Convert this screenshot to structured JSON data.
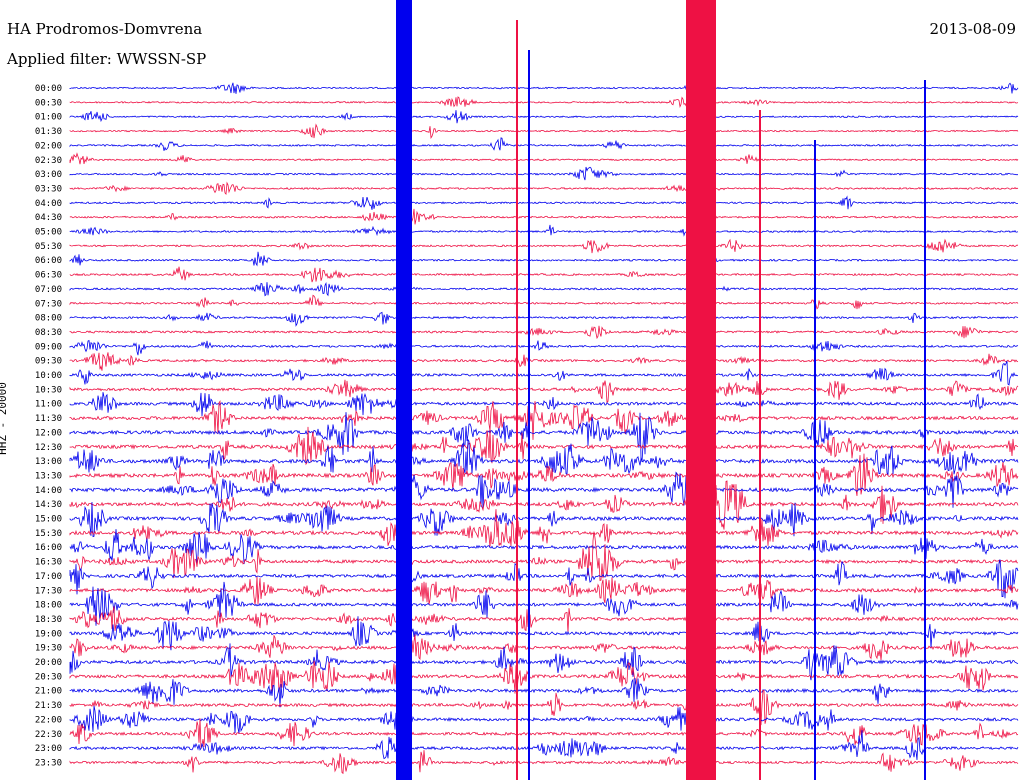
{
  "header": {
    "station": "HA Prodromos-Domvrena",
    "filter": "Applied filter: WWSSN-SP",
    "date": "2013-08-09"
  },
  "chart_data": {
    "type": "line",
    "title": "HA Prodromos-Domvrena",
    "subtitle": "Applied filter: WWSSN-SP",
    "ylabel": "HHZ - 20000",
    "xlabel": "",
    "grid": false,
    "legend": "none",
    "row_labels": [
      "00:00",
      "00:30",
      "01:00",
      "01:30",
      "02:00",
      "02:30",
      "03:00",
      "03:30",
      "04:00",
      "04:30",
      "05:00",
      "05:30",
      "06:00",
      "06:30",
      "07:00",
      "07:30",
      "08:00",
      "08:30",
      "09:00",
      "09:30",
      "10:00",
      "10:30",
      "11:00",
      "11:30",
      "12:00",
      "12:30",
      "13:00",
      "13:30",
      "14:00",
      "14:30",
      "15:00",
      "15:30",
      "16:00",
      "16:30",
      "17:00",
      "17:30",
      "18:00",
      "18:30",
      "19:00",
      "19:30",
      "20:00",
      "20:30",
      "21:00",
      "21:30",
      "22:00",
      "22:30",
      "23:00",
      "23:30"
    ],
    "series_colors": [
      "#0000ee",
      "#ee1144"
    ],
    "activity_level": [
      0.1,
      0.1,
      0.1,
      0.1,
      0.15,
      0.1,
      0.15,
      0.2,
      0.2,
      0.2,
      0.2,
      0.2,
      0.2,
      0.25,
      0.25,
      0.25,
      0.25,
      0.3,
      0.3,
      0.4,
      0.5,
      0.6,
      0.7,
      0.8,
      0.9,
      0.9,
      1.0,
      1.0,
      1.0,
      0.9,
      0.9,
      0.9,
      0.85,
      0.8,
      0.8,
      0.8,
      0.75,
      0.75,
      0.75,
      0.8,
      0.8,
      0.8,
      0.75,
      0.7,
      0.7,
      0.6,
      0.6,
      0.5
    ]
  }
}
